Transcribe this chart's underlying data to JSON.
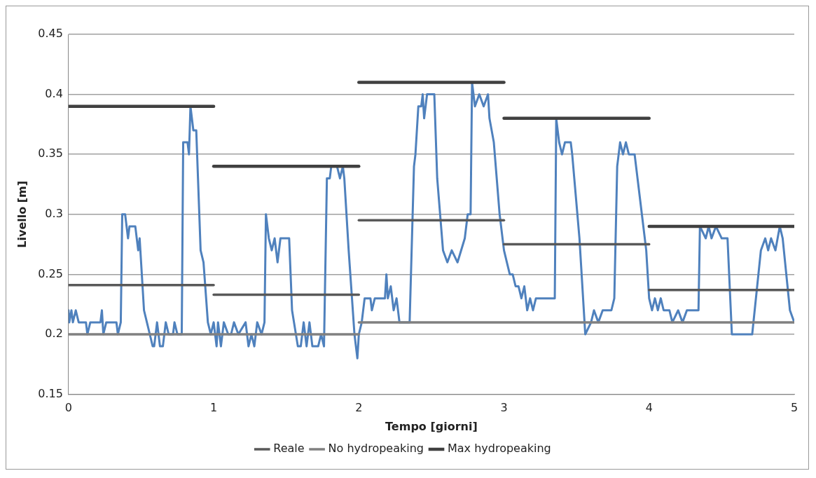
{
  "chart_data": {
    "type": "line",
    "xlabel": "Tempo [giorni]",
    "ylabel": "Livello [m]",
    "xlim": [
      0,
      5
    ],
    "xticks": [
      0,
      1,
      2,
      3,
      4,
      5
    ],
    "ylim": [
      0.15,
      0.45
    ],
    "yticks": [
      0.15,
      0.2,
      0.25,
      0.3,
      0.35,
      0.4,
      0.45
    ],
    "grid": "y",
    "legend": "bottom",
    "marker": "none",
    "line_style": "solid",
    "series": [
      {
        "color": "#4f81bd",
        "x": [
          0,
          0.005,
          0.02,
          0.03,
          0.05,
          0.07,
          0.12,
          0.13,
          0.15,
          0.22,
          0.23,
          0.24,
          0.26,
          0.33,
          0.34,
          0.36,
          0.37,
          0.39,
          0.41,
          0.42,
          0.46,
          0.48,
          0.49,
          0.5,
          0.52,
          0.54,
          0.56,
          0.58,
          0.59,
          0.61,
          0.63,
          0.65,
          0.67,
          0.69,
          0.72,
          0.73,
          0.75,
          0.78,
          0.79,
          0.82,
          0.83,
          0.84,
          0.86,
          0.88,
          0.91,
          0.93,
          0.96,
          0.98,
          1.0,
          1.02,
          1.03,
          1.05,
          1.07,
          1.1,
          1.12,
          1.14,
          1.17,
          1.22,
          1.24,
          1.26,
          1.28,
          1.3,
          1.33,
          1.35,
          1.36,
          1.38,
          1.4,
          1.42,
          1.44,
          1.46,
          1.52,
          1.54,
          1.58,
          1.6,
          1.62,
          1.64,
          1.66,
          1.68,
          1.72,
          1.74,
          1.76,
          1.78,
          1.8,
          1.81,
          1.85,
          1.87,
          1.89,
          1.9,
          1.93,
          1.97,
          1.99,
          2.0,
          2.02,
          2.04,
          2.08,
          2.09,
          2.11,
          2.14,
          2.18,
          2.19,
          2.2,
          2.22,
          2.24,
          2.26,
          2.28,
          2.35,
          2.38,
          2.39,
          2.41,
          2.43,
          2.44,
          2.45,
          2.47,
          2.52,
          2.54,
          2.58,
          2.61,
          2.64,
          2.68,
          2.73,
          2.75,
          2.77,
          2.78,
          2.8,
          2.83,
          2.86,
          2.89,
          2.9,
          2.93,
          2.97,
          3.0,
          3.02,
          3.04,
          3.06,
          3.08,
          3.1,
          3.12,
          3.14,
          3.16,
          3.18,
          3.2,
          3.22,
          3.35,
          3.36,
          3.38,
          3.4,
          3.42,
          3.46,
          3.47,
          3.52,
          3.56,
          3.6,
          3.62,
          3.65,
          3.68,
          3.74,
          3.76,
          3.78,
          3.8,
          3.82,
          3.84,
          3.86,
          3.9,
          3.95,
          3.98,
          4.0,
          4.02,
          4.04,
          4.06,
          4.08,
          4.1,
          4.14,
          4.16,
          4.2,
          4.23,
          4.26,
          4.34,
          4.35,
          4.39,
          4.41,
          4.43,
          4.46,
          4.5,
          4.54,
          4.57,
          4.71,
          4.77,
          4.8,
          4.82,
          4.84,
          4.87,
          4.9,
          4.92,
          4.97,
          5.0
        ],
        "values": [
          0.22,
          0.21,
          0.22,
          0.21,
          0.22,
          0.21,
          0.21,
          0.2,
          0.21,
          0.21,
          0.22,
          0.2,
          0.21,
          0.21,
          0.2,
          0.21,
          0.3,
          0.3,
          0.28,
          0.29,
          0.29,
          0.27,
          0.28,
          0.26,
          0.22,
          0.21,
          0.2,
          0.19,
          0.19,
          0.21,
          0.19,
          0.19,
          0.21,
          0.2,
          0.2,
          0.21,
          0.2,
          0.2,
          0.36,
          0.36,
          0.35,
          0.39,
          0.37,
          0.37,
          0.27,
          0.26,
          0.21,
          0.2,
          0.21,
          0.19,
          0.21,
          0.19,
          0.21,
          0.2,
          0.2,
          0.21,
          0.2,
          0.21,
          0.19,
          0.2,
          0.19,
          0.21,
          0.2,
          0.21,
          0.3,
          0.28,
          0.27,
          0.28,
          0.26,
          0.28,
          0.28,
          0.22,
          0.19,
          0.19,
          0.21,
          0.19,
          0.21,
          0.19,
          0.19,
          0.2,
          0.19,
          0.33,
          0.33,
          0.34,
          0.34,
          0.33,
          0.34,
          0.33,
          0.27,
          0.2,
          0.18,
          0.2,
          0.21,
          0.23,
          0.23,
          0.22,
          0.23,
          0.23,
          0.23,
          0.25,
          0.23,
          0.24,
          0.22,
          0.23,
          0.21,
          0.21,
          0.34,
          0.35,
          0.39,
          0.39,
          0.4,
          0.38,
          0.4,
          0.4,
          0.33,
          0.27,
          0.26,
          0.27,
          0.26,
          0.28,
          0.3,
          0.3,
          0.41,
          0.39,
          0.4,
          0.39,
          0.4,
          0.38,
          0.36,
          0.3,
          0.27,
          0.26,
          0.25,
          0.25,
          0.24,
          0.24,
          0.23,
          0.24,
          0.22,
          0.23,
          0.22,
          0.23,
          0.23,
          0.38,
          0.36,
          0.35,
          0.36,
          0.36,
          0.35,
          0.28,
          0.2,
          0.21,
          0.22,
          0.21,
          0.22,
          0.22,
          0.23,
          0.34,
          0.36,
          0.35,
          0.36,
          0.35,
          0.35,
          0.3,
          0.27,
          0.23,
          0.22,
          0.23,
          0.22,
          0.23,
          0.22,
          0.22,
          0.21,
          0.22,
          0.21,
          0.22,
          0.22,
          0.29,
          0.28,
          0.29,
          0.28,
          0.29,
          0.28,
          0.28,
          0.2,
          0.2,
          0.27,
          0.28,
          0.27,
          0.28,
          0.27,
          0.29,
          0.28,
          0.22,
          0.21
        ]
      },
      {
        "name": "Reale",
        "color": "#595959",
        "x": [
          0,
          1,
          1,
          2,
          2,
          3,
          3,
          4,
          4,
          5
        ],
        "values": [
          0.241,
          0.241,
          0.233,
          0.233,
          0.295,
          0.295,
          0.275,
          0.275,
          0.237,
          0.237
        ]
      },
      {
        "name": "No hydropeaking",
        "color": "#808080",
        "x": [
          0,
          2,
          2,
          5
        ],
        "values": [
          0.2,
          0.2,
          0.21,
          0.21
        ]
      },
      {
        "name": "Max hydropeaking",
        "color": "#404040",
        "x": [
          0,
          1,
          1,
          2,
          2,
          3,
          3,
          4,
          4,
          5
        ],
        "values": [
          0.39,
          0.39,
          0.34,
          0.34,
          0.41,
          0.41,
          0.38,
          0.38,
          0.29,
          0.29
        ]
      }
    ]
  }
}
